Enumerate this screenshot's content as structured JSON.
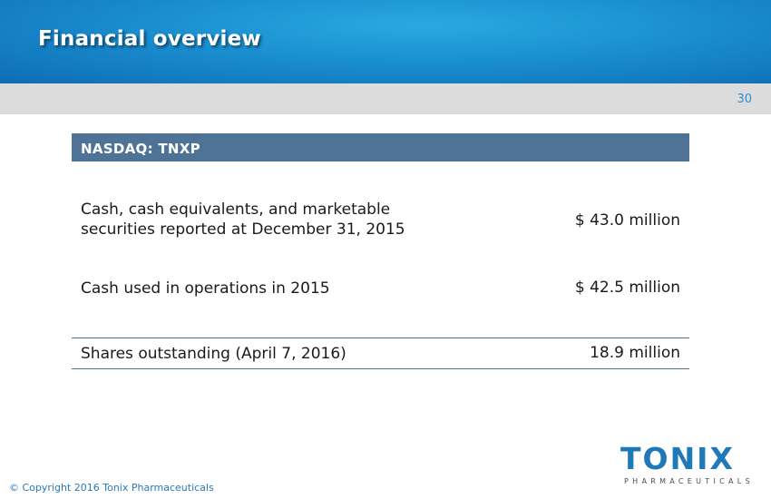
{
  "header": {
    "title": "Financial overview"
  },
  "page_number": "30",
  "table": {
    "heading": "NASDAQ: TNXP",
    "rows": [
      {
        "label_line1": "Cash, cash equivalents, and marketable",
        "label_line2": "securities reported at December 31, 2015",
        "value": "$ 43.0 million"
      },
      {
        "label": "Cash used in operations in 2015",
        "value": "$ 42.5 million"
      },
      {
        "label": "Shares outstanding (April 7, 2016)",
        "value": "18.9 million"
      }
    ]
  },
  "footer": {
    "copyright": "© Copyright 2016 Tonix Pharmaceuticals"
  },
  "logo": {
    "name": "TONIX",
    "tagline": "PHARMACEUTICALS"
  },
  "colors": {
    "header_blue": "#1a8fd0",
    "table_header": "#4f7396",
    "brand_blue": "#1f78b8"
  }
}
